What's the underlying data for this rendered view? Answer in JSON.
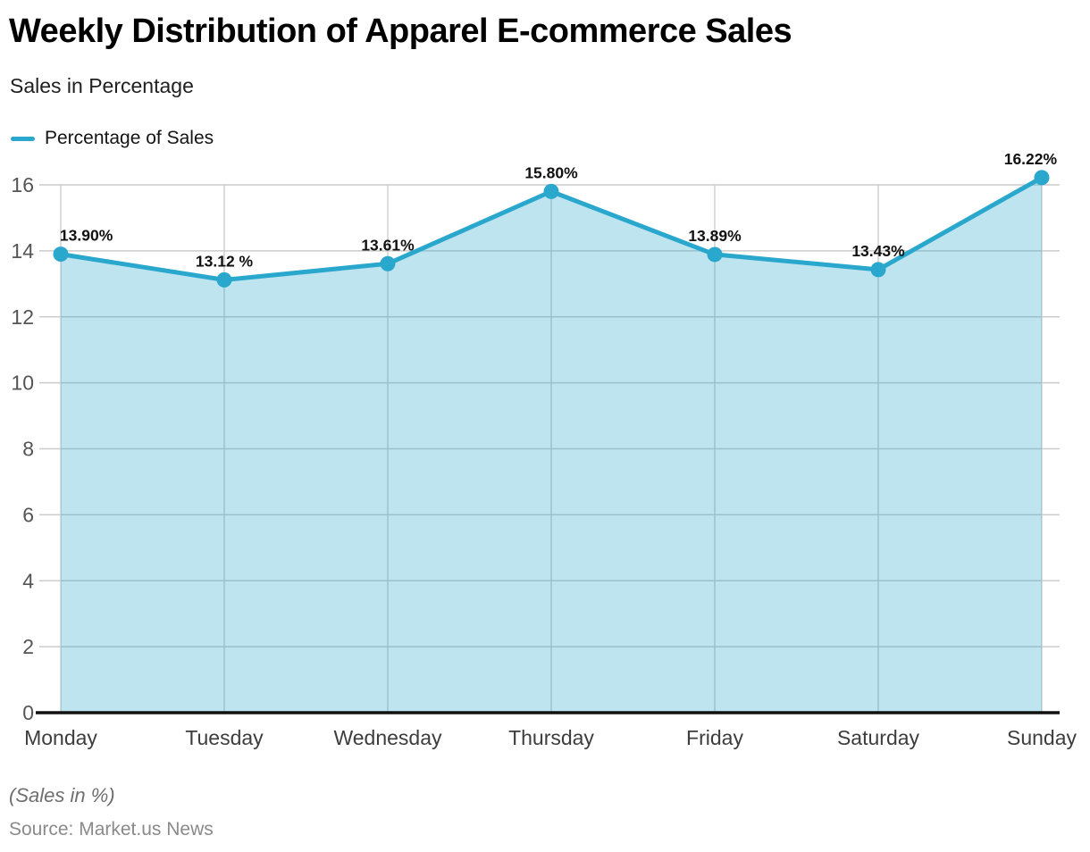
{
  "chart_data": {
    "type": "area",
    "title": "Weekly Distribution of Apparel E-commerce Sales",
    "subtitle": "Sales in Percentage",
    "legend": [
      "Percentage of Sales"
    ],
    "legend_position": "top-left",
    "categories": [
      "Monday",
      "Tuesday",
      "Wednesday",
      "Thursday",
      "Friday",
      "Saturday",
      "Sunday"
    ],
    "series": [
      {
        "name": "Percentage of Sales",
        "values": [
          13.9,
          13.12,
          13.61,
          15.8,
          13.89,
          13.43,
          16.22
        ]
      }
    ],
    "point_labels": [
      "13.90%",
      "13.12 %",
      "13.61%",
      "15.80%",
      "13.89%",
      "13.43%",
      "16.22%"
    ],
    "xlabel": "",
    "ylabel": "",
    "ylim": [
      0,
      16
    ],
    "yticks": [
      0,
      2,
      4,
      6,
      8,
      10,
      12,
      14,
      16
    ],
    "grid": true,
    "footnote": "(Sales in %)",
    "source": "Source: Market.us News"
  },
  "colors": {
    "line": "#29A7CD",
    "area_fill": "#29A7CD",
    "area_opacity": 0.3,
    "grid": "#CCCCCC",
    "axis": "#111111",
    "tick_label": "#555555",
    "category_label": "#3D3D3D",
    "point_label": "#111111"
  }
}
